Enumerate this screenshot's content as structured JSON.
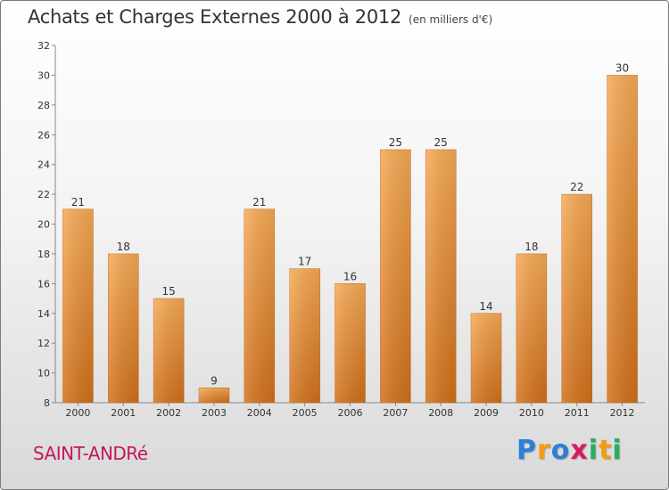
{
  "header": {
    "title": "Achats et Charges Externes 2000 à 2012",
    "subtitle": "(en milliers d'€)"
  },
  "footer": {
    "town": "SAINT-ANDRé",
    "logo": [
      "P",
      "r",
      "o",
      "x",
      "i",
      "t",
      "i"
    ],
    "logo_colors": [
      "#2e7fd6",
      "#f39c12",
      "#2e7fd6",
      "#d81b60",
      "#27ae60",
      "#f39c12",
      "#27ae60"
    ]
  },
  "chart_data": {
    "type": "bar",
    "title": "Achats et Charges Externes 2000 à 2012",
    "subtitle": "(en milliers d'€)",
    "categories": [
      "2000",
      "2001",
      "2002",
      "2003",
      "2004",
      "2005",
      "2006",
      "2007",
      "2008",
      "2009",
      "2010",
      "2011",
      "2012"
    ],
    "values": [
      21,
      18,
      15,
      9,
      21,
      17,
      16,
      25,
      25,
      14,
      18,
      22,
      30
    ],
    "ylim": [
      8,
      32
    ],
    "yticks": [
      8,
      10,
      12,
      14,
      16,
      18,
      20,
      22,
      24,
      26,
      28,
      30,
      32
    ],
    "grid": false,
    "bar_color": "#f0a04a",
    "bar_color_dark": "#d2761c"
  }
}
